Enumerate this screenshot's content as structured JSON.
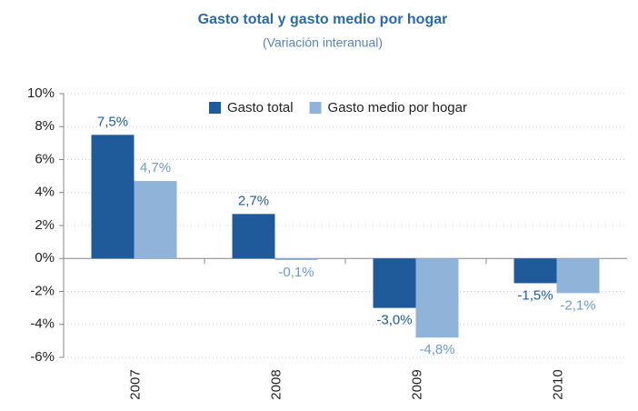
{
  "chart_data": {
    "type": "bar",
    "title": "Gasto total y gasto medio por hogar",
    "subtitle": "(Variación interanual)",
    "categories": [
      "2007",
      "2008",
      "2009",
      "2010"
    ],
    "series": [
      {
        "name": "Gasto total",
        "color": "#1f5b9a",
        "values": [
          7.5,
          2.7,
          -3.0,
          -1.5
        ],
        "value_labels": [
          "7,5%",
          "2,7%",
          "-3,0%",
          "-1,5%"
        ]
      },
      {
        "name": "Gasto medio por hogar",
        "color": "#8fb3d9",
        "values": [
          4.7,
          -0.1,
          -4.8,
          -2.1
        ],
        "value_labels": [
          "4,7%",
          "-0,1%",
          "-4,8%",
          "-2,1%"
        ]
      }
    ],
    "ylim": [
      -6,
      10
    ],
    "yticks": [
      {
        "value": -6,
        "label": "-6%"
      },
      {
        "value": -4,
        "label": "-4%"
      },
      {
        "value": -2,
        "label": "-2%"
      },
      {
        "value": 0,
        "label": "0%"
      },
      {
        "value": 2,
        "label": "2%"
      },
      {
        "value": 4,
        "label": "4%"
      },
      {
        "value": 6,
        "label": "6%"
      },
      {
        "value": 8,
        "label": "8%"
      },
      {
        "value": 10,
        "label": "10%"
      }
    ],
    "grid": true,
    "legend": "top"
  }
}
